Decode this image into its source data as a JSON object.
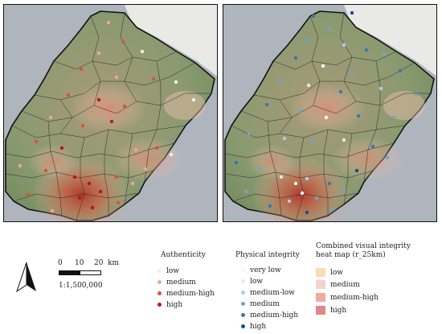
{
  "scale": {
    "ticks": [
      "0",
      "10",
      "20"
    ],
    "unit": "km",
    "ratio": "1:1,500,000"
  },
  "legends": {
    "authenticity": {
      "title": "Authenticity",
      "items": [
        {
          "label": "low",
          "color": "#f2f0ea"
        },
        {
          "label": "medium",
          "color": "#f1a98e"
        },
        {
          "label": "medium-high",
          "color": "#dd5136"
        },
        {
          "label": "high",
          "color": "#b8161b"
        }
      ]
    },
    "physical_integrity": {
      "title": "Physical integrity",
      "items": [
        {
          "label": "very low",
          "color": "#f6f6f8"
        },
        {
          "label": "low",
          "color": "#e1ebf3"
        },
        {
          "label": "medium-low",
          "color": "#b1cde3"
        },
        {
          "label": "medium",
          "color": "#6da5cf"
        },
        {
          "label": "medium-high",
          "color": "#3478b2"
        },
        {
          "label": "high",
          "color": "#0f4f8e"
        }
      ]
    },
    "heatmap": {
      "title_line1": "Combined visual integrity",
      "title_line2": "heat map (r_25km)",
      "items": [
        {
          "label": "low",
          "color": "#fbdcb4"
        },
        {
          "label": "medium",
          "color": "#f8d0cd"
        },
        {
          "label": "medium-high",
          "color": "#f2aa9f"
        },
        {
          "label": "high",
          "color": "#e2868a"
        }
      ]
    }
  }
}
